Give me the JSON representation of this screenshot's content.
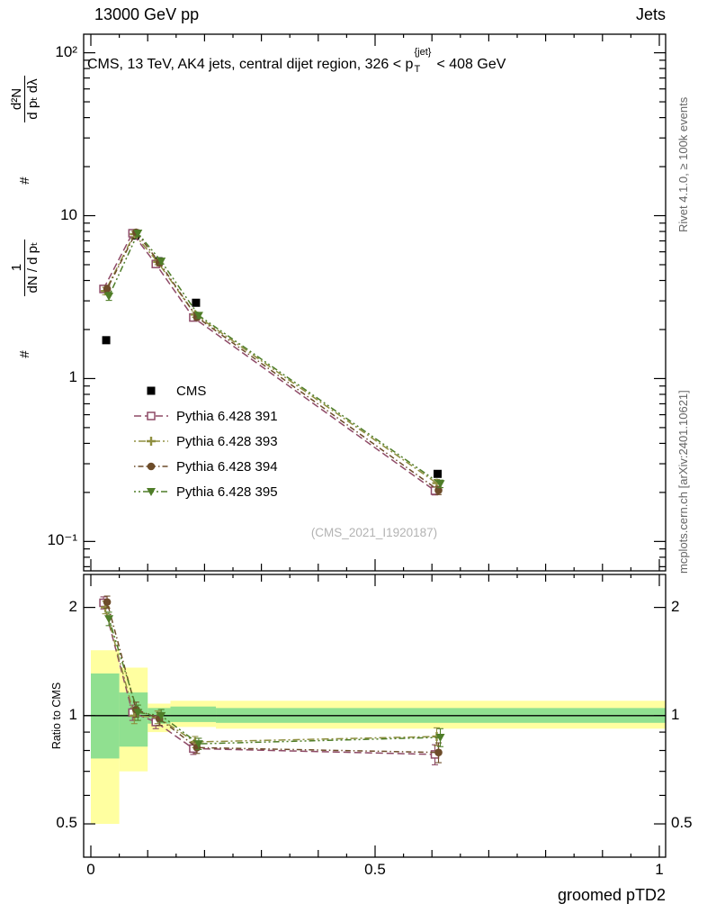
{
  "header": {
    "left": "13000 GeV pp",
    "right": "Jets"
  },
  "plot_title": {
    "pre": "CMS, 13 TeV, AK4 jets, central dijet region, 326 < p",
    "sup": "{jet}",
    "sub": "T",
    "post": "< 408 GeV"
  },
  "ylabel": {
    "hash1": "#",
    "f1num": "1",
    "f1den": "dN / d pₜ",
    "hash2": "#",
    "f2num": "d²N",
    "f2den": "d pₜ dλ"
  },
  "watermark": "(CMS_2021_I1920187)",
  "side_notes": {
    "top": "Rivet 4.1.0, ≥ 100k events",
    "bottom": "mcplots.cern.ch [arXiv:2401.10621]"
  },
  "chart_data": {
    "type": "line",
    "xlabel": "groomed pTD2",
    "xlim": [
      0,
      1
    ],
    "xticks": [
      {
        "v": 0,
        "label": "0"
      },
      {
        "v": 0.5,
        "label": "0.5"
      },
      {
        "v": 1,
        "label": "1"
      }
    ],
    "x": [
      0.027,
      0.078,
      0.119,
      0.185,
      0.61
    ],
    "main_panel": {
      "yscale": "log",
      "ylim": [
        0.066,
        130
      ],
      "yticks": [
        {
          "v": 100,
          "label": "10²"
        },
        {
          "v": 10,
          "label": "10"
        },
        {
          "v": 1,
          "label": "1"
        },
        {
          "v": 0.1,
          "label": "10⁻¹"
        }
      ],
      "series": [
        {
          "name": "CMS",
          "marker": "square-filled",
          "color": "#000000",
          "dash": null,
          "values": [
            1.72,
            7.55,
            5.25,
            2.92,
            0.26
          ],
          "err": [
            0,
            0,
            0,
            0,
            0
          ]
        },
        {
          "name": "Pythia 6.428 391",
          "marker": "square-open",
          "color": "#8e4a67",
          "dash": "8,4",
          "values": [
            3.55,
            7.8,
            5.05,
            2.37,
            0.205
          ],
          "err": [
            0.18,
            0.3,
            0.2,
            0.09,
            0.012
          ]
        },
        {
          "name": "Pythia 6.428 393",
          "marker": "plus-open",
          "color": "#8f8f40",
          "dash": "2,3,8,3",
          "values": [
            3.45,
            7.7,
            5.2,
            2.47,
            0.228
          ],
          "err": [
            0.18,
            0.3,
            0.2,
            0.09,
            0.012
          ]
        },
        {
          "name": "Pythia 6.428 394",
          "marker": "circle-filled",
          "color": "#6d4c2a",
          "dash": "1.5,3,6,3",
          "values": [
            3.55,
            7.9,
            5.15,
            2.38,
            0.206
          ],
          "err": [
            0.18,
            0.3,
            0.2,
            0.09,
            0.012
          ]
        },
        {
          "name": "Pythia 6.428 395",
          "marker": "triangle-down-filled",
          "color": "#4f7d28",
          "dash": "2,3,2,3,7,3",
          "values": [
            3.2,
            7.8,
            5.25,
            2.44,
            0.226
          ],
          "err": [
            0.18,
            0.3,
            0.2,
            0.09,
            0.012
          ]
        }
      ]
    },
    "ratio_panel": {
      "ylabel": "Ratio to CMS",
      "yscale": "log",
      "ylim": [
        0.404,
        2.47
      ],
      "reference_line": 1,
      "yticks": [
        {
          "v": 2,
          "label": "2"
        },
        {
          "v": 1,
          "label": "1"
        },
        {
          "v": 0.5,
          "label": "0.5"
        }
      ],
      "band_colors": {
        "outer": "#ffffa0",
        "inner": "#90e090"
      },
      "bands": [
        {
          "x0": 0.0,
          "x1": 0.05,
          "outer": [
            0.5,
            1.52
          ],
          "inner": [
            0.76,
            1.31
          ]
        },
        {
          "x0": 0.05,
          "x1": 0.1,
          "outer": [
            0.7,
            1.36
          ],
          "inner": [
            0.82,
            1.16
          ]
        },
        {
          "x0": 0.1,
          "x1": 0.14,
          "outer": [
            0.9,
            1.08
          ],
          "inner": [
            0.95,
            1.05
          ]
        },
        {
          "x0": 0.14,
          "x1": 0.22,
          "outer": [
            0.93,
            1.1
          ],
          "inner": [
            0.96,
            1.06
          ]
        },
        {
          "x0": 0.22,
          "x1": 1.011,
          "outer": [
            0.92,
            1.1
          ],
          "inner": [
            0.955,
            1.05
          ]
        }
      ],
      "series": [
        {
          "name": "Pythia 6.428 391",
          "marker": "square-open",
          "color": "#8e4a67",
          "dash": "8,4",
          "values": [
            2.06,
            1.02,
            0.96,
            0.81,
            0.78
          ],
          "err": [
            0.08,
            0.05,
            0.04,
            0.03,
            0.05
          ]
        },
        {
          "name": "Pythia 6.428 393",
          "marker": "plus-open",
          "color": "#8f8f40",
          "dash": "2,3,8,3",
          "values": [
            2.0,
            1.0,
            0.99,
            0.845,
            0.875
          ],
          "err": [
            0.08,
            0.05,
            0.04,
            0.03,
            0.05
          ]
        },
        {
          "name": "Pythia 6.428 394",
          "marker": "circle-filled",
          "color": "#6d4c2a",
          "dash": "1.5,3,6,3",
          "values": [
            2.07,
            1.04,
            0.98,
            0.815,
            0.79
          ],
          "err": [
            0.08,
            0.05,
            0.04,
            0.03,
            0.05
          ]
        },
        {
          "name": "Pythia 6.428 395",
          "marker": "triangle-down-filled",
          "color": "#4f7d28",
          "dash": "2,3,2,3,7,3",
          "values": [
            1.86,
            1.02,
            1.0,
            0.835,
            0.87
          ],
          "err": [
            0.08,
            0.05,
            0.04,
            0.03,
            0.05
          ]
        }
      ]
    }
  }
}
